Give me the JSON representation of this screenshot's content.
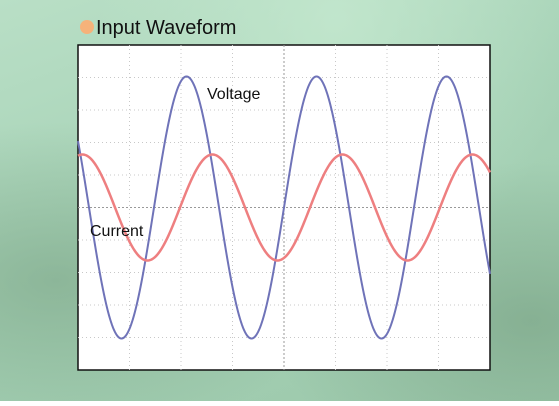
{
  "title": "Input Waveform",
  "labels": {
    "voltage": "Voltage",
    "current": "Current"
  }
}
